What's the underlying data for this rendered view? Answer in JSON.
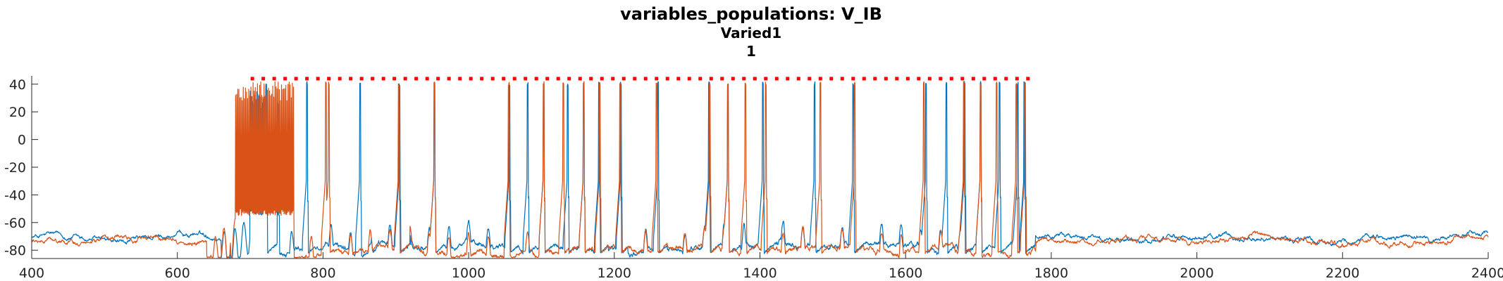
{
  "chart_data": {
    "type": "line",
    "title": "variables_populations: V_IB",
    "subtitle": "Varied1",
    "subtitle2": "1",
    "xlabel": "",
    "ylabel": "",
    "xlim": [
      400,
      2400
    ],
    "ylim": [
      -86,
      46
    ],
    "xticks": [
      400,
      600,
      800,
      1000,
      1200,
      1400,
      1600,
      1800,
      2000,
      2200,
      2400
    ],
    "yticks": [
      -80,
      -60,
      -40,
      -20,
      0,
      20,
      40
    ],
    "grid": false,
    "legend": "none",
    "series": [
      {
        "color": "#0072BD",
        "baseline": -70,
        "burst": {
          "start": 700,
          "end": 740,
          "min": -55,
          "max": 35
        },
        "spikes": [
          722,
          778,
          851,
          905,
          953,
          1056,
          1081,
          1103,
          1136,
          1158,
          1179,
          1209,
          1260,
          1330,
          1356,
          1404,
          1475,
          1528,
          1628,
          1656,
          1681,
          1703,
          1729,
          1754,
          1763
        ]
      },
      {
        "color": "#D95319",
        "baseline": -72,
        "burst": {
          "start": 680,
          "end": 760,
          "min": -55,
          "max": 42
        },
        "spikes": [
          804,
          808,
          904,
          953,
          1055,
          1103,
          1130,
          1158,
          1180,
          1208,
          1258,
          1331,
          1356,
          1380,
          1408,
          1483,
          1530,
          1625,
          1680,
          1703,
          1725,
          1752,
          1764
        ]
      }
    ],
    "markers": {
      "color": "#FF0000",
      "y": 44,
      "start": 703,
      "end": 1775,
      "step": 15
    }
  }
}
